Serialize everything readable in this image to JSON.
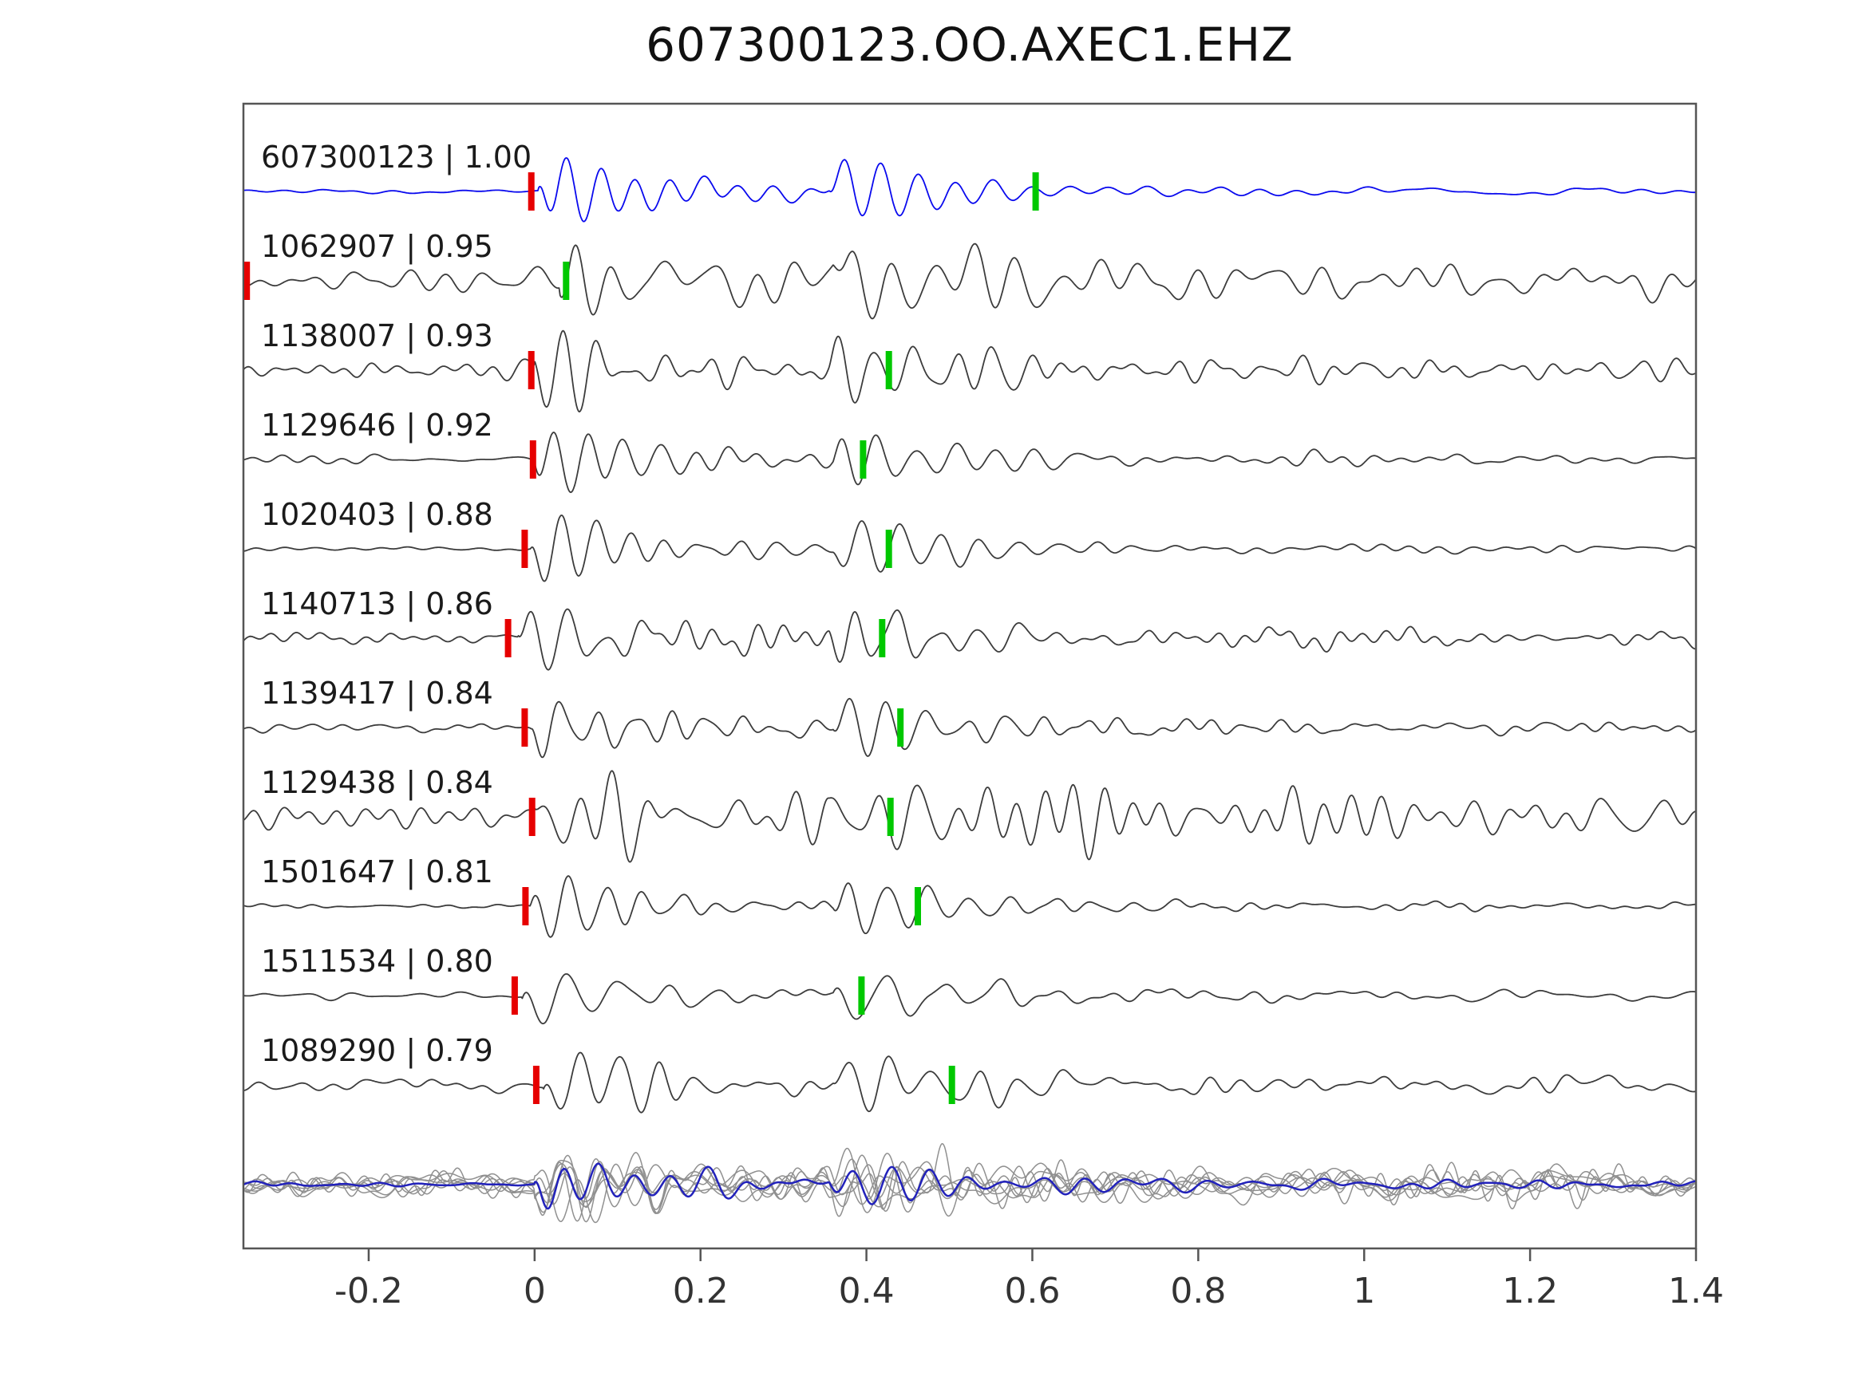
{
  "title": "607300123.OO.AXEC1.EHZ",
  "colors": {
    "reference_trace": "#0a0aee",
    "match_trace": "#3c3c3c",
    "pick_red": "#e60000",
    "pick_green": "#00c800",
    "stack_blue": "#2222bb",
    "stack_gray": "#909090",
    "axis_frame": "#555555",
    "tick_text": "#333333",
    "label_text": "#1a1a1a",
    "background": "#ffffff"
  },
  "chart_data": {
    "type": "line",
    "title": "607300123.OO.AXEC1.EHZ",
    "xlabel": "",
    "ylabel": "",
    "grid": false,
    "legend": "none",
    "x_range": [
      -0.351,
      1.4
    ],
    "x_ticks": [
      -0.2,
      0,
      0.2,
      0.4,
      0.6,
      0.8,
      1,
      1.2,
      1.4
    ],
    "x_tick_labels": [
      "-0.2",
      "0",
      "0.2",
      "0.4",
      "0.6",
      "0.8",
      "1",
      "1.2",
      "1.4"
    ],
    "description": "Template waveform correlation panel: 11 labelled seismogram traces (event id | correlation coefficient), red bars = reference picks, green bars = lag-adjusted picks, bottom row = overlay of all traces (gray) with stacked trace (blue).",
    "traces": [
      {
        "id": "607300123",
        "correlation": 1.0,
        "label": "607300123 | 1.00",
        "role": "reference",
        "pick_red_x": -0.004,
        "pick_green_x": 0.604,
        "synth": {
          "seed": 101,
          "freq": 24,
          "onset": 0.005,
          "burst2": 0.355,
          "amp": 1.0,
          "noise": 0.07,
          "coda": 0.22,
          "coda_decay": 0.7
        }
      },
      {
        "id": "1062907",
        "correlation": 0.95,
        "label": "1062907 | 0.95",
        "role": "match",
        "pick_red_x": -0.347,
        "pick_green_x": 0.038,
        "synth": {
          "seed": 202,
          "freq": 23,
          "onset": 0.03,
          "burst2": 0.36,
          "amp": 1.05,
          "noise": 0.4,
          "coda": 0.3,
          "coda_decay": 0.8
        }
      },
      {
        "id": "1138007",
        "correlation": 0.93,
        "label": "1138007 | 0.93",
        "role": "match",
        "pick_red_x": -0.004,
        "pick_green_x": 0.427,
        "synth": {
          "seed": 303,
          "freq": 23,
          "onset": 0.0,
          "burst2": 0.355,
          "amp": 1.0,
          "noise": 0.28,
          "coda": 0.28,
          "coda_decay": 0.8
        }
      },
      {
        "id": "1129646",
        "correlation": 0.92,
        "label": "1129646 | 0.92",
        "role": "match",
        "pick_red_x": -0.002,
        "pick_green_x": 0.396,
        "synth": {
          "seed": 404,
          "freq": 23,
          "onset": 0.0,
          "burst2": 0.36,
          "amp": 0.95,
          "noise": 0.16,
          "coda": 0.25,
          "coda_decay": 0.7
        }
      },
      {
        "id": "1020403",
        "correlation": 0.88,
        "label": "1020403 | 0.88",
        "role": "match",
        "pick_red_x": -0.012,
        "pick_green_x": 0.427,
        "synth": {
          "seed": 505,
          "freq": 23,
          "onset": -0.005,
          "burst2": 0.36,
          "amp": 1.0,
          "noise": 0.08,
          "coda": 0.25,
          "coda_decay": 0.8
        }
      },
      {
        "id": "1140713",
        "correlation": 0.86,
        "label": "1140713 | 0.86",
        "role": "match",
        "pick_red_x": -0.032,
        "pick_green_x": 0.419,
        "synth": {
          "seed": 606,
          "freq": 22,
          "onset": -0.02,
          "burst2": 0.355,
          "amp": 0.95,
          "noise": 0.2,
          "coda": 0.28,
          "coda_decay": 0.8
        }
      },
      {
        "id": "1139417",
        "correlation": 0.84,
        "label": "1139417 | 0.84",
        "role": "match",
        "pick_red_x": -0.012,
        "pick_green_x": 0.441,
        "synth": {
          "seed": 707,
          "freq": 23,
          "onset": -0.005,
          "burst2": 0.36,
          "amp": 1.0,
          "noise": 0.15,
          "coda": 0.25,
          "coda_decay": 0.7
        }
      },
      {
        "id": "1129438",
        "correlation": 0.84,
        "label": "1129438 | 0.84",
        "role": "match",
        "pick_red_x": -0.003,
        "pick_green_x": 0.429,
        "synth": {
          "seed": 808,
          "freq": 23,
          "onset": 0.0,
          "burst2": 0.355,
          "amp": 1.0,
          "noise": 0.4,
          "coda": 0.55,
          "coda_decay": 2.2
        }
      },
      {
        "id": "1501647",
        "correlation": 0.81,
        "label": "1501647 | 0.81",
        "role": "match",
        "pick_red_x": -0.011,
        "pick_green_x": 0.462,
        "synth": {
          "seed": 909,
          "freq": 22,
          "onset": -0.005,
          "burst2": 0.36,
          "amp": 1.0,
          "noise": 0.07,
          "coda": 0.18,
          "coda_decay": 0.9
        }
      },
      {
        "id": "1511534",
        "correlation": 0.8,
        "label": "1511534 | 0.80",
        "role": "match",
        "pick_red_x": -0.024,
        "pick_green_x": 0.394,
        "synth": {
          "seed": 1010,
          "freq": 16,
          "onset": -0.015,
          "burst2": 0.36,
          "amp": 0.9,
          "noise": 0.15,
          "coda": 0.18,
          "coda_decay": 0.9
        }
      },
      {
        "id": "1089290",
        "correlation": 0.79,
        "label": "1089290 | 0.79",
        "role": "match",
        "pick_red_x": 0.002,
        "pick_green_x": 0.503,
        "synth": {
          "seed": 1111,
          "freq": 21,
          "onset": 0.01,
          "burst2": 0.36,
          "amp": 0.9,
          "noise": 0.22,
          "coda": 0.25,
          "coda_decay": 1.0
        }
      }
    ],
    "stack_row": {
      "overlay_seeds": [
        2001,
        2002,
        2003,
        2004,
        2005,
        2006,
        2007
      ],
      "overlay_synth": {
        "freq": 23,
        "onset": 0.0,
        "burst2": 0.355,
        "amp": 0.72,
        "noise": 0.5,
        "coda": 0.4,
        "coda_decay": 1.2
      },
      "stack_synth": {
        "seed": 3000,
        "freq": 23,
        "onset": 0.0,
        "burst2": 0.355,
        "amp": 0.82,
        "noise": 0.1,
        "coda": 0.3,
        "coda_decay": 1.0
      }
    }
  }
}
